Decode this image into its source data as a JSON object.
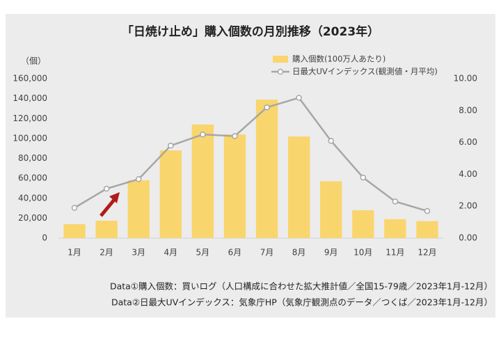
{
  "chart_data": {
    "type": "bar-line",
    "title": "「日焼け止め」購入個数の月別推移（2023年）",
    "y_unit_label": "（個）",
    "categories": [
      "1月",
      "2月",
      "3月",
      "4月",
      "5月",
      "6月",
      "7月",
      "8月",
      "9月",
      "10月",
      "11月",
      "12月"
    ],
    "series": [
      {
        "name": "購入個数(100万人あたり)",
        "type": "bar",
        "color": "#f9d56e",
        "values": [
          14000,
          17500,
          58000,
          88000,
          114000,
          104000,
          139000,
          102000,
          57000,
          28000,
          19000,
          17000
        ]
      },
      {
        "name": "日最大UVインデックス(観測値・月平均)",
        "type": "line",
        "axis": "y2",
        "color": "#a6a6a6",
        "values": [
          1.9,
          3.1,
          3.7,
          5.8,
          6.5,
          6.4,
          8.2,
          8.8,
          6.1,
          3.8,
          2.3,
          1.7
        ]
      }
    ],
    "ylim": [
      0,
      160000
    ],
    "yticks": [
      0,
      {
        "value": 20000,
        "label": "20,000"
      },
      {
        "value": 40000,
        "label": "40,000"
      },
      {
        "value": 60000,
        "label": "60,000"
      },
      {
        "value": 80000,
        "label": "80,000"
      },
      {
        "value": 100000,
        "label": "100,000"
      },
      {
        "value": 120000,
        "label": "120,000"
      },
      {
        "value": 140000,
        "label": "140,000"
      },
      {
        "value": 160000,
        "label": "160,000"
      }
    ],
    "y2lim": [
      0,
      10
    ],
    "y2ticks": [
      {
        "value": 0,
        "label": "0.00"
      },
      {
        "value": 2,
        "label": "2.00"
      },
      {
        "value": 4,
        "label": "4.00"
      },
      {
        "value": 6,
        "label": "6.00"
      },
      {
        "value": 8,
        "label": "8.00"
      },
      {
        "value": 10,
        "label": "10.00"
      }
    ],
    "grid": false,
    "legend": "top",
    "footnotes": [
      "Data①購入個数：買いログ（人口構成に合わせた拡大推計値／全国15-79歳／2023年1月-12月）",
      "Data②日最大UVインデックス：気象庁HP（気象庁観測点のデータ／つくば／2023年1月-12月）"
    ]
  }
}
